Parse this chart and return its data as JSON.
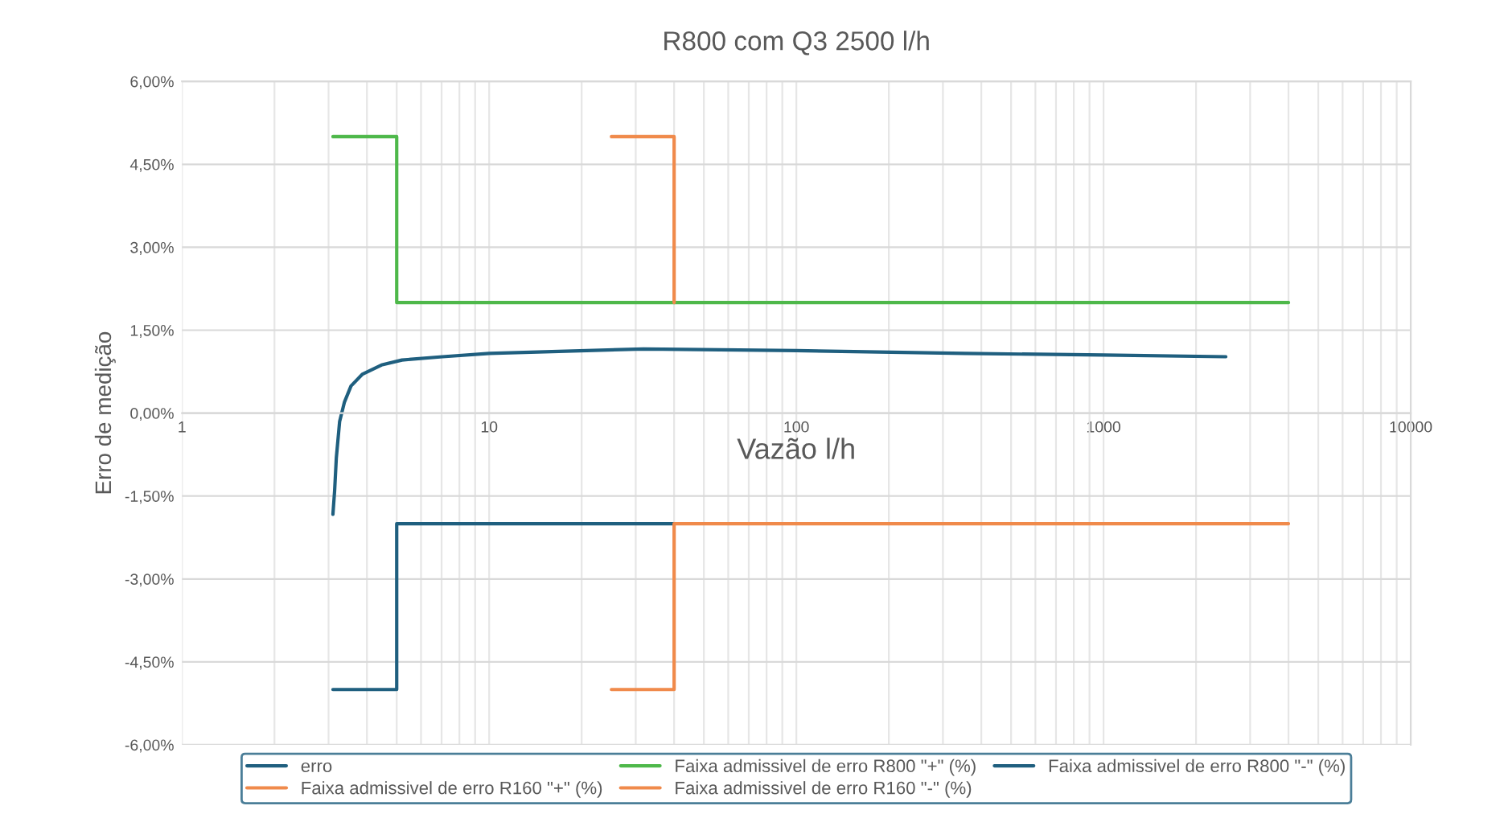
{
  "chart_data": {
    "type": "line",
    "title": "R800 com Q3 2500 l/h",
    "xlabel": "Vazão l/h",
    "ylabel": "Erro de medição",
    "log": "x",
    "xlim": [
      1,
      10000
    ],
    "xticks": [
      1,
      10,
      100,
      1000,
      10000
    ],
    "ylim": [
      -6,
      6
    ],
    "yticks": [
      {
        "value": -6,
        "label": "-6,00%"
      },
      {
        "value": -4.5,
        "label": "-4,50%"
      },
      {
        "value": -3,
        "label": "-3,00%"
      },
      {
        "value": -1.5,
        "label": "-1,50%"
      },
      {
        "value": 0,
        "label": "0,00%"
      },
      {
        "value": 1.5,
        "label": "1,50%"
      },
      {
        "value": 3,
        "label": "3,00%"
      },
      {
        "value": 4.5,
        "label": "4,50%"
      },
      {
        "value": 6,
        "label": "6,00%"
      }
    ],
    "grid": true,
    "legend": "bottom",
    "marker": "none",
    "line_style": "solid",
    "series": [
      {
        "name": "erro",
        "color": "#1f5f7f",
        "x": [
          3.1,
          3.14,
          3.18,
          3.26,
          3.38,
          3.55,
          3.86,
          4.46,
          5.2,
          7.05,
          10,
          31.8,
          100,
          353,
          1000,
          2500
        ],
        "values": [
          -1.83,
          -1.4,
          -0.81,
          -0.15,
          0.2,
          0.49,
          0.7,
          0.87,
          0.96,
          1.02,
          1.08,
          1.16,
          1.13,
          1.08,
          1.05,
          1.02
        ]
      },
      {
        "name": "Faixa admissivel de erro R800 \"+\" (%)",
        "color": "#4eb84a",
        "x": [
          3.1,
          5,
          5,
          4000
        ],
        "values": [
          5,
          5,
          2,
          2
        ]
      },
      {
        "name": "Faixa admissivel de erro R800 \"-\" (%)",
        "color": "#1f5f7f",
        "x": [
          3.1,
          5,
          5,
          40
        ],
        "values": [
          -5,
          -5,
          -2,
          -2
        ]
      },
      {
        "name": "Faixa admissivel de erro R160 \"+\" (%)",
        "color": "#f08a4b",
        "x": [
          25,
          40,
          40
        ],
        "values": [
          5,
          5,
          2
        ]
      },
      {
        "name": "Faixa admissivel de erro R160 \"-\" (%)",
        "color": "#f08a4b",
        "x": [
          25,
          40,
          40,
          4000
        ],
        "values": [
          -5,
          -5,
          -2,
          -2
        ]
      }
    ]
  }
}
